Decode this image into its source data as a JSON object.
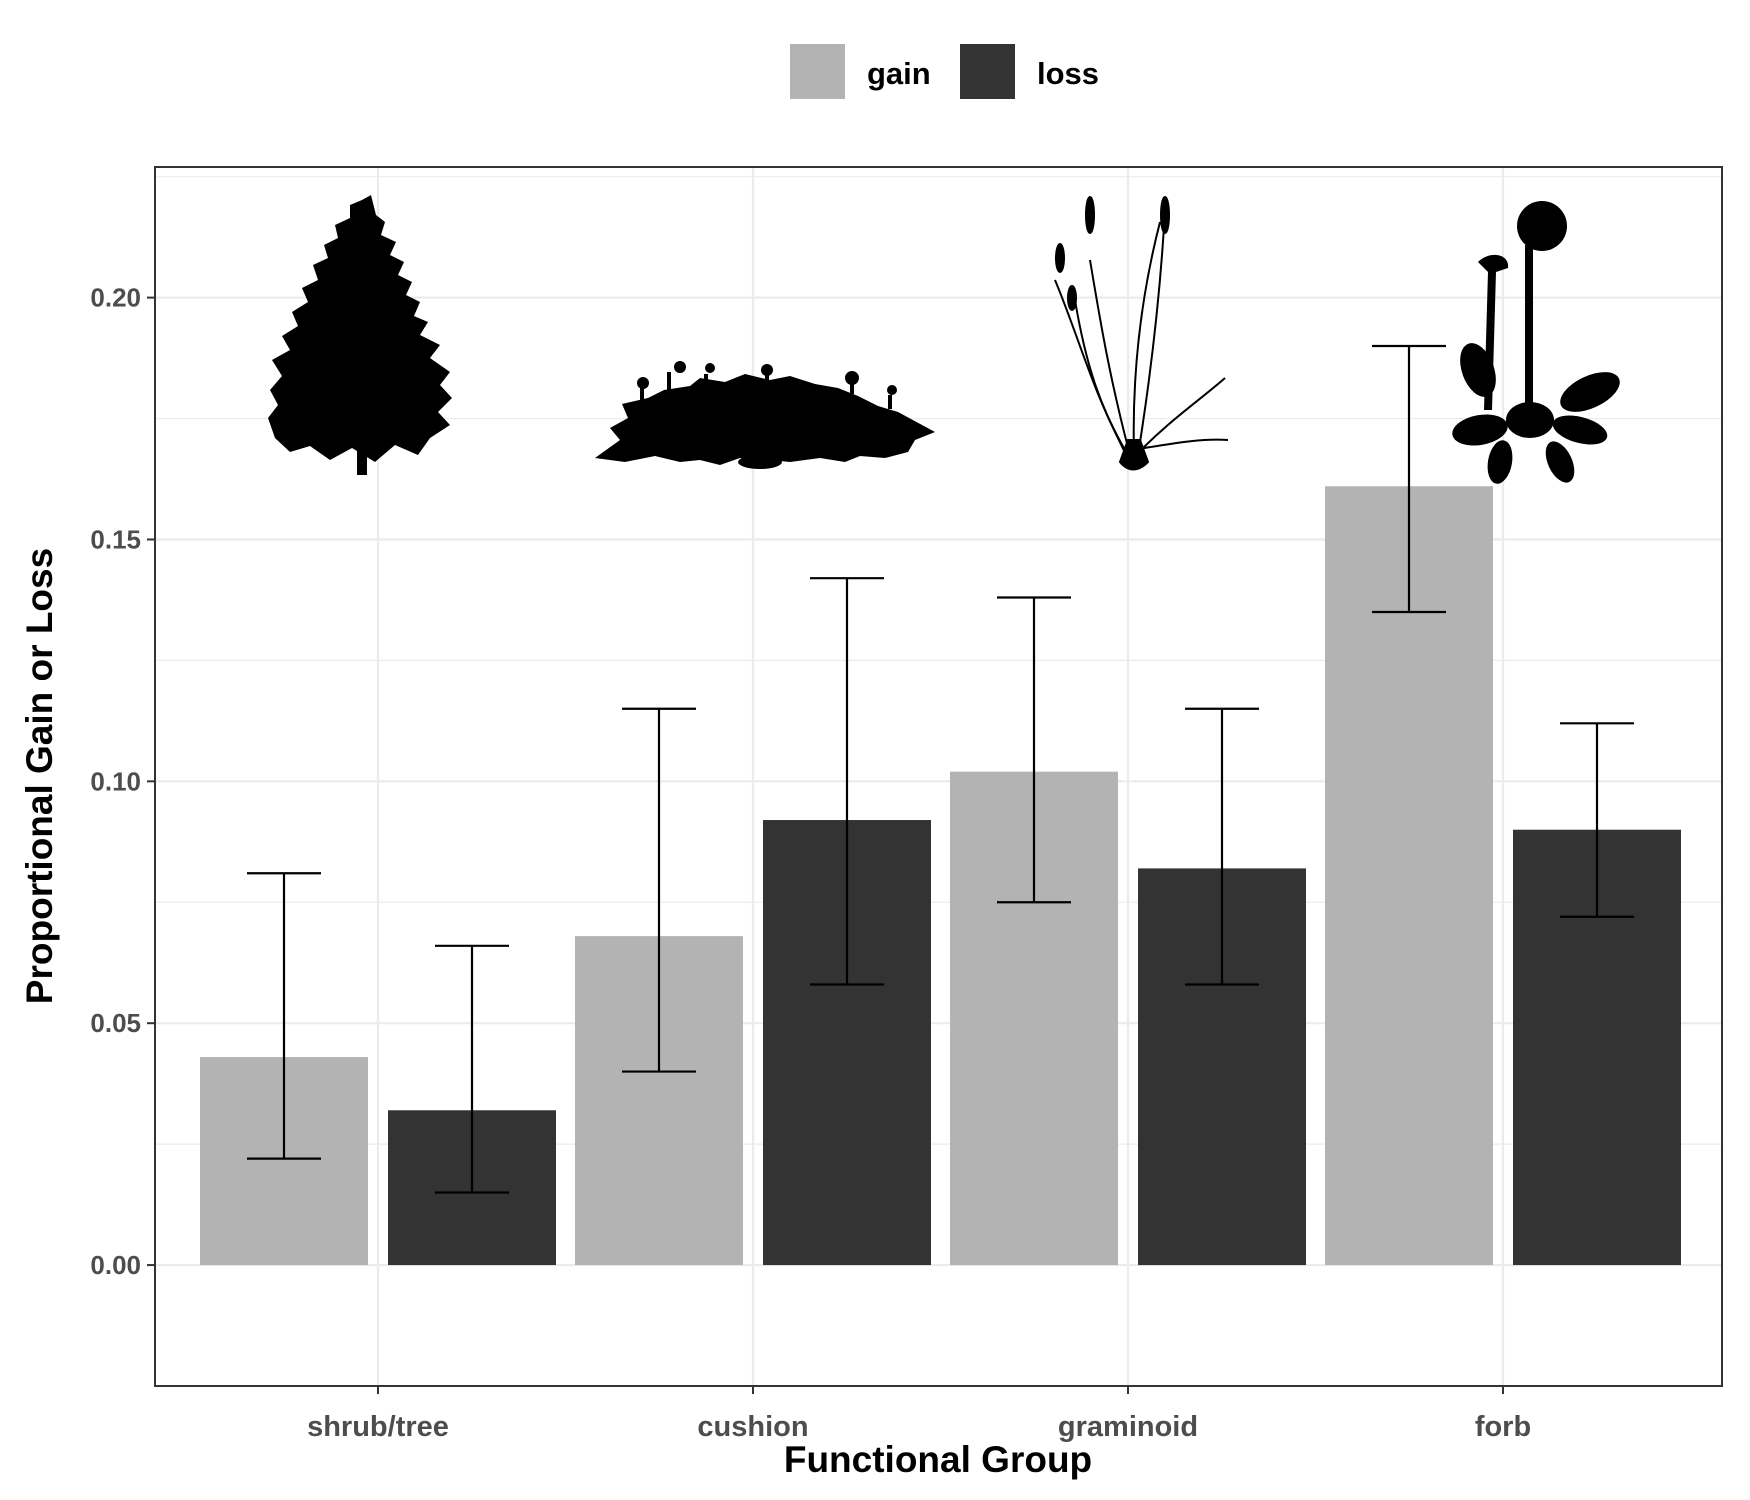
{
  "chart_data": {
    "type": "bar",
    "categories": [
      "shrub/tree",
      "cushion",
      "graminoid",
      "forb"
    ],
    "series": [
      {
        "name": "gain",
        "color": "#b3b3b3",
        "values": [
          0.043,
          0.068,
          0.102,
          0.161
        ],
        "error_low": [
          0.022,
          0.04,
          0.075,
          0.135
        ],
        "error_high": [
          0.081,
          0.115,
          0.138,
          0.19
        ]
      },
      {
        "name": "loss",
        "color": "#333333",
        "values": [
          0.032,
          0.092,
          0.082,
          0.09
        ],
        "error_low": [
          0.015,
          0.058,
          0.058,
          0.072
        ],
        "error_high": [
          0.066,
          0.142,
          0.115,
          0.112
        ]
      }
    ],
    "xlabel": "Functional Group",
    "ylabel": "Proportional Gain or Loss",
    "ylim": [
      -0.025,
      0.227
    ],
    "yticks": [
      0.0,
      0.05,
      0.1,
      0.15,
      0.2
    ],
    "ytick_labels": [
      "0.00",
      "0.05",
      "0.10",
      "0.15",
      "0.20"
    ],
    "grid": true,
    "legend_position": "top",
    "icons": [
      "conifer-tree-icon",
      "cushion-plant-icon",
      "grass-icon",
      "flower-icon"
    ]
  }
}
